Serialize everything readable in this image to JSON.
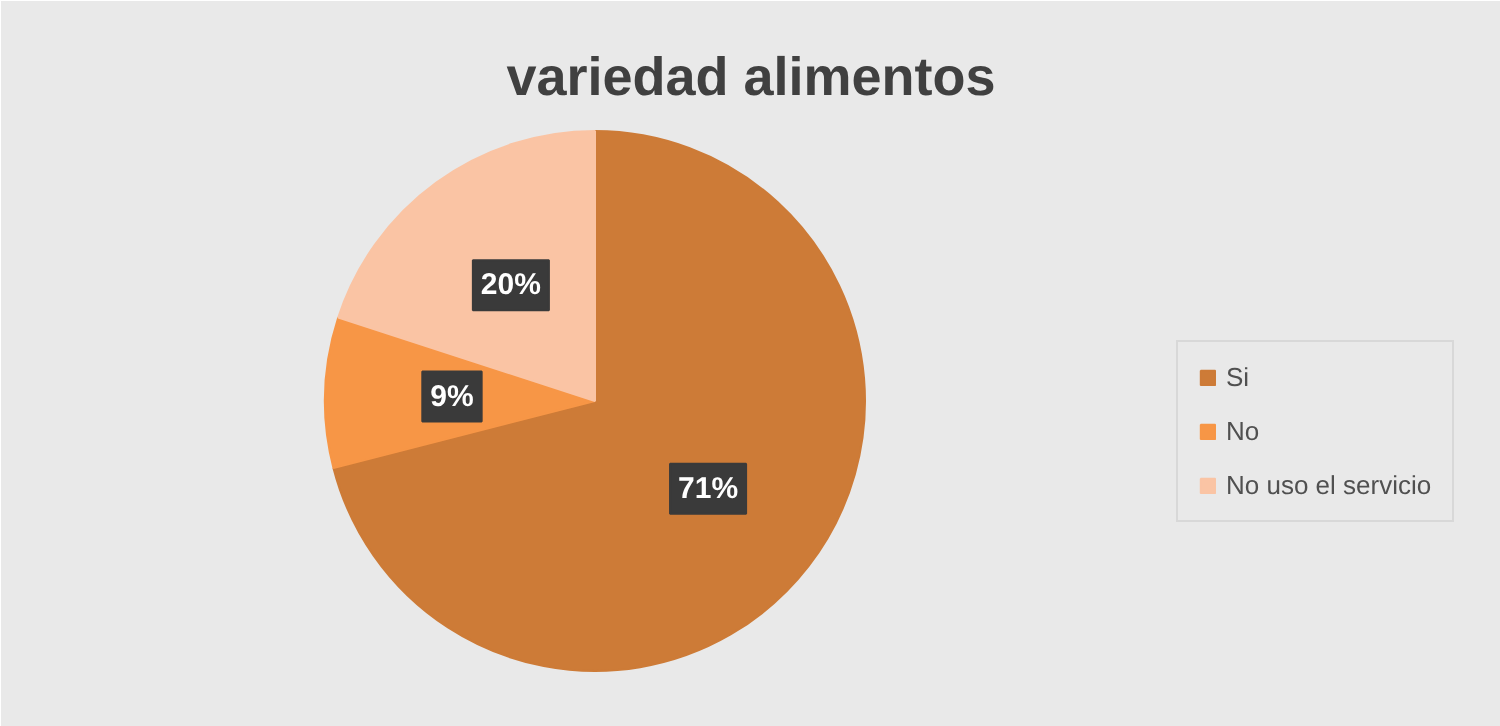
{
  "chart_data": {
    "type": "pie",
    "title": "variedad alimentos",
    "categories": [
      "Si",
      "No",
      "No uso el servicio"
    ],
    "values": [
      71,
      9,
      20
    ],
    "colors": [
      "#cd7b37",
      "#f79646",
      "#fac4a4"
    ],
    "value_labels": [
      "71%",
      "9%",
      "20%"
    ],
    "legend": "right"
  }
}
